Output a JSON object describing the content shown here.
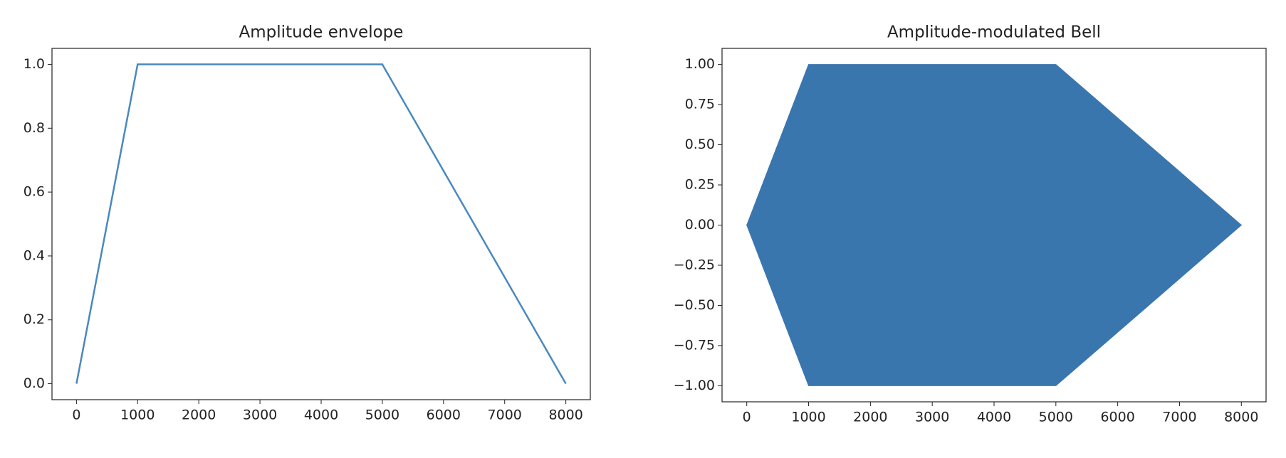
{
  "chart_data": [
    {
      "type": "line",
      "title": "Amplitude envelope",
      "x": [
        0,
        1000,
        5000,
        8000
      ],
      "series": [
        {
          "color": "#4a88bf",
          "values": [
            0,
            1,
            1,
            0
          ]
        }
      ],
      "xlim": [
        -400,
        8400
      ],
      "xticks": [
        0,
        1000,
        2000,
        3000,
        4000,
        5000,
        6000,
        7000,
        8000
      ],
      "ylim": [
        -0.05,
        1.05
      ],
      "yticks": [
        {
          "value": 0,
          "label": "0.0"
        },
        {
          "value": 0.2,
          "label": "0.2"
        },
        {
          "value": 0.4,
          "label": "0.4"
        },
        {
          "value": 0.6,
          "label": "0.6"
        },
        {
          "value": 0.8,
          "label": "0.8"
        },
        {
          "value": 1,
          "label": "1.0"
        }
      ]
    },
    {
      "type": "area",
      "title": "Amplitude-modulated Bell",
      "x": [
        0,
        1000,
        5000,
        8000
      ],
      "series": [
        {
          "color": "#3a76ae",
          "values": [
            0,
            1,
            1,
            0
          ]
        },
        {
          "color": "#3a76ae",
          "values": [
            0,
            -1,
            -1,
            0
          ]
        }
      ],
      "xlim": [
        -400,
        8400
      ],
      "xticks": [
        0,
        1000,
        2000,
        3000,
        4000,
        5000,
        6000,
        7000,
        8000
      ],
      "ylim": [
        -1.1,
        1.1
      ],
      "yticks": [
        {
          "value": -1,
          "label": "−1.00"
        },
        {
          "value": -0.75,
          "label": "−0.75"
        },
        {
          "value": -0.5,
          "label": "−0.50"
        },
        {
          "value": -0.25,
          "label": "−0.25"
        },
        {
          "value": 0,
          "label": "0.00"
        },
        {
          "value": 0.25,
          "label": "0.25"
        },
        {
          "value": 0.5,
          "label": "0.50"
        },
        {
          "value": 0.75,
          "label": "0.75"
        },
        {
          "value": 1,
          "label": "1.00"
        }
      ]
    }
  ]
}
